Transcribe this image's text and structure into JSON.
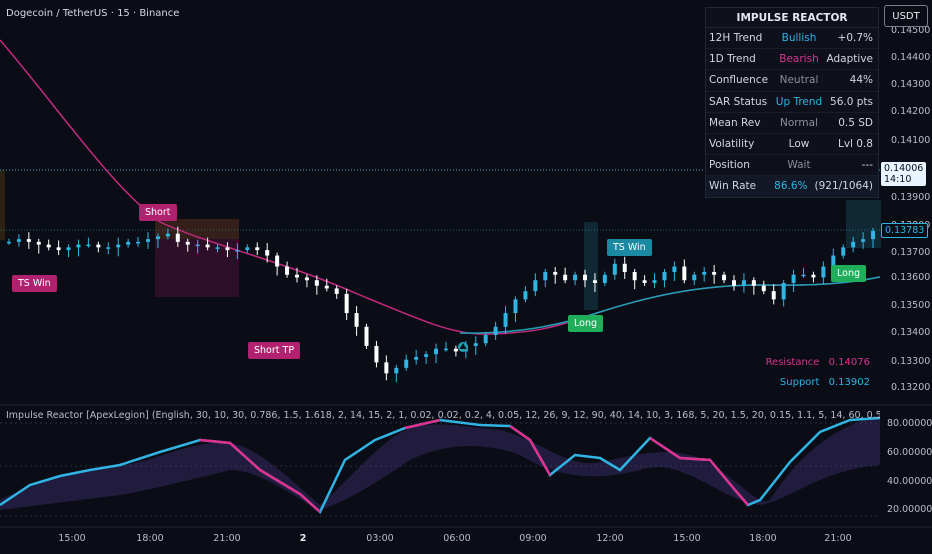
{
  "header": {
    "symbol_title": "Dogecoin / TetherUS · 15 · Binance",
    "currency": "USDT"
  },
  "info_table": {
    "title": "IMPULSE REACTOR",
    "rows": [
      {
        "label": "12H Trend",
        "status": "Bullish",
        "value": "+0.7%",
        "status_color": "#2fb4e3"
      },
      {
        "label": "1D Trend",
        "status": "Bearish",
        "value": "Adaptive",
        "status_color": "#d6348f"
      },
      {
        "label": "Confluence",
        "status": "Neutral",
        "value": "44%",
        "status_color": "#8a8e99"
      },
      {
        "label": "SAR Status",
        "status": "Up Trend",
        "value": "56.0 pts",
        "status_color": "#2fb4e3"
      },
      {
        "label": "Mean Rev",
        "status": "Normal",
        "value": "0.5 SD",
        "status_color": "#8a8e99"
      },
      {
        "label": "Volatility",
        "status": "Low",
        "value": "Lvl 0.8",
        "status_color": "#d4d6de"
      },
      {
        "label": "Position",
        "status": "Wait",
        "value": "---",
        "status_color": "#8a8e99"
      },
      {
        "label": "Win Rate",
        "status": "86.6%",
        "value": "(921/1064)",
        "status_color": "#2fb4e3"
      }
    ]
  },
  "price_axis": {
    "ticks": [
      "0.14500",
      "0.14400",
      "0.14300",
      "0.14200",
      "0.14100",
      "0.13900",
      "0.13800",
      "0.13700",
      "0.13600",
      "0.13500",
      "0.13400",
      "0.13300",
      "0.13200"
    ],
    "current_price": "0.14006",
    "countdown": "14:10",
    "last_price": "0.13783"
  },
  "indicator_axis": {
    "ticks": [
      "80.00000",
      "60.00000",
      "40.00000",
      "20.00000"
    ]
  },
  "time_axis": {
    "ticks": [
      "15:00",
      "18:00",
      "21:00",
      "2",
      "03:00",
      "06:00",
      "09:00",
      "12:00",
      "15:00",
      "18:00",
      "21:00"
    ]
  },
  "indicator": {
    "title": "Impulse Reactor [ApexLegion] (English, 30, 10, 30, 0.786, 1.5, 1.618, 2, 14, 15, 2, 1, 0.02, 0.02, 0.2, 4, 0.05, 12, 26, 9, 12, 90, 40, 14, 10, 3, 168, 5, 20, 1.5, 20, 0.15, 1.1, 5, 14, 60, 0.5, 0.5, 1, 0.2)"
  },
  "signals": {
    "ts_win_1": "TS Win",
    "short": "Short",
    "short_tp": "Short TP",
    "long_1": "Long",
    "ts_win_2": "TS Win",
    "long_2": "Long"
  },
  "levels": {
    "resistance_label": "Resistance",
    "resistance_value": "0.14076",
    "support_label": "Support",
    "support_value": "0.13902"
  },
  "colors": {
    "bull": "#2fb4e3",
    "bear": "#ffffff",
    "magenta": "#d6348f",
    "teal": "#1ea0b5",
    "long_green": "#1fae5a",
    "background": "#0b0d16"
  },
  "chart_data": {
    "type": "candlestick",
    "price_ylim": [
      0.1317,
      0.1455
    ],
    "series": [
      {
        "name": "close",
        "values": [
          0.1374,
          0.1375,
          0.1374,
          0.1373,
          0.1372,
          0.1371,
          0.1372,
          0.1373,
          0.1373,
          0.1372,
          0.1372,
          0.1373,
          0.1374,
          0.1374,
          0.1375,
          0.1376,
          0.1377,
          0.1374,
          0.1373,
          0.1373,
          0.1372,
          0.1372,
          0.1371,
          0.1371,
          0.1372,
          0.1371,
          0.1369,
          0.1365,
          0.1362,
          0.1361,
          0.136,
          0.1358,
          0.1357,
          0.1355,
          0.1348,
          0.1343,
          0.1336,
          0.133,
          0.1326,
          0.1328,
          0.1331,
          0.1332,
          0.1333,
          0.1335,
          0.1335,
          0.1334,
          0.1336,
          0.1337,
          0.134,
          0.1343,
          0.1348,
          0.1353,
          0.1356,
          0.136,
          0.1363,
          0.1362,
          0.136,
          0.1362,
          0.136,
          0.1359,
          0.1362,
          0.1366,
          0.1363,
          0.136,
          0.1359,
          0.136,
          0.1363,
          0.1365,
          0.136,
          0.1362,
          0.1363,
          0.1362,
          0.136,
          0.1358,
          0.136,
          0.1358,
          0.1356,
          0.1353,
          0.1359,
          0.1362,
          0.1362,
          0.1361,
          0.1365,
          0.1369,
          0.1372,
          0.1374,
          0.1375,
          0.1378
        ]
      }
    ]
  }
}
